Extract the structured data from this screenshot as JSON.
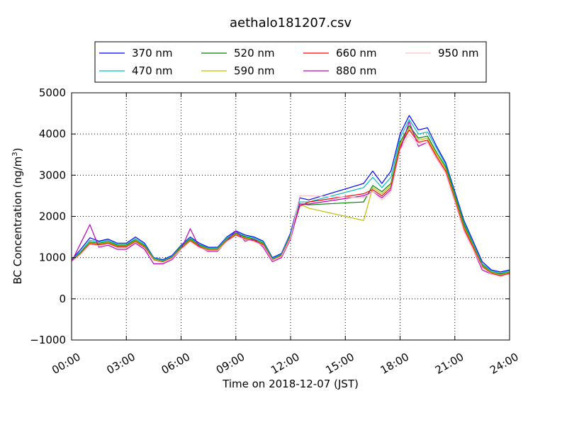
{
  "chart_data": {
    "type": "line",
    "title": "aethalo181207.csv",
    "xlabel": "Time on 2018-12-07 (JST)",
    "ylabel_main": "BC Concentration (ng/m",
    "ylabel_sup": "3",
    "ylabel_close": ")",
    "xlim": [
      0,
      24
    ],
    "ylim": [
      -1000,
      5000
    ],
    "x_ticks": [
      0,
      3,
      6,
      9,
      12,
      15,
      18,
      21,
      24
    ],
    "x_tick_labels": [
      "00:00",
      "03:00",
      "06:00",
      "09:00",
      "12:00",
      "15:00",
      "18:00",
      "21:00",
      "24:00"
    ],
    "y_ticks": [
      -1000,
      0,
      1000,
      2000,
      3000,
      4000,
      5000
    ],
    "y_tick_labels": [
      "−1000",
      "0",
      "1000",
      "2000",
      "3000",
      "4000",
      "5000"
    ],
    "grid": true,
    "legend_position": "top, above plot",
    "x_units": "hours",
    "x": [
      0,
      0.5,
      1,
      1.5,
      2,
      2.5,
      3,
      3.5,
      4,
      4.5,
      5,
      5.5,
      6,
      6.5,
      7,
      7.5,
      8,
      8.5,
      9,
      9.5,
      10,
      10.5,
      11,
      11.5,
      12,
      12.5,
      13,
      16,
      16.5,
      17,
      17.5,
      18,
      18.5,
      19,
      19.5,
      20,
      20.5,
      21,
      21.5,
      22,
      22.5,
      23,
      23.5,
      24
    ],
    "series": [
      {
        "name": "370 nm",
        "color": "#0000ff",
        "values": [
          950,
          1200,
          1480,
          1400,
          1450,
          1350,
          1350,
          1500,
          1350,
          1000,
          950,
          1050,
          1300,
          1500,
          1350,
          1250,
          1250,
          1500,
          1650,
          1550,
          1500,
          1400,
          1000,
          1100,
          1600,
          2450,
          2400,
          2800,
          3100,
          2800,
          3100,
          4000,
          4450,
          4100,
          4150,
          3700,
          3300,
          2600,
          1900,
          1400,
          900,
          700,
          650,
          700
        ]
      },
      {
        "name": "470 nm",
        "color": "#00bfbf",
        "values": [
          950,
          1150,
          1420,
          1380,
          1420,
          1320,
          1320,
          1460,
          1320,
          990,
          930,
          1030,
          1280,
          1480,
          1320,
          1230,
          1230,
          1480,
          1620,
          1520,
          1480,
          1380,
          980,
          1080,
          1570,
          2350,
          2350,
          2700,
          2950,
          2700,
          2950,
          3900,
          4350,
          4000,
          4050,
          3650,
          3250,
          2550,
          1850,
          1350,
          850,
          680,
          620,
          680
        ]
      },
      {
        "name": "520 nm",
        "color": "#008000",
        "values": [
          930,
          1120,
          1380,
          1350,
          1390,
          1300,
          1300,
          1430,
          1290,
          970,
          910,
          1010,
          1260,
          1450,
          1300,
          1210,
          1210,
          1450,
          1590,
          1500,
          1450,
          1350,
          960,
          1060,
          1540,
          2300,
          2280,
          2350,
          2750,
          2600,
          2800,
          3800,
          4200,
          3900,
          3950,
          3550,
          3200,
          2500,
          1800,
          1300,
          820,
          650,
          600,
          650
        ]
      },
      {
        "name": "590 nm",
        "color": "#bfbf00",
        "values": [
          920,
          1100,
          1360,
          1330,
          1370,
          1280,
          1280,
          1410,
          1270,
          960,
          900,
          1000,
          1240,
          1430,
          1280,
          1200,
          1200,
          1430,
          1570,
          1480,
          1430,
          1330,
          950,
          1050,
          1520,
          2300,
          2200,
          1900,
          2700,
          2550,
          2750,
          3750,
          4150,
          3850,
          3900,
          3500,
          3150,
          2450,
          1750,
          1280,
          800,
          640,
          580,
          640
        ]
      },
      {
        "name": "660 nm",
        "color": "#ff0000",
        "values": [
          910,
          1090,
          1340,
          1310,
          1350,
          1260,
          1260,
          1390,
          1250,
          940,
          890,
          990,
          1220,
          1410,
          1260,
          1180,
          1180,
          1410,
          1550,
          1460,
          1410,
          1310,
          940,
          1040,
          1500,
          2250,
          2350,
          2550,
          2650,
          2500,
          2700,
          3700,
          4100,
          3800,
          3850,
          3450,
          3100,
          2400,
          1700,
          1250,
          780,
          620,
          560,
          620
        ]
      },
      {
        "name": "880 nm",
        "color": "#bf00bf",
        "values": [
          900,
          1350,
          1800,
          1250,
          1300,
          1200,
          1200,
          1350,
          1200,
          850,
          850,
          950,
          1200,
          1700,
          1250,
          1150,
          1150,
          1400,
          1650,
          1400,
          1450,
          1250,
          900,
          1000,
          1450,
          2300,
          2300,
          2500,
          2600,
          2450,
          2650,
          3600,
          4300,
          3700,
          3800,
          3400,
          3050,
          2350,
          1650,
          1200,
          700,
          600,
          550,
          600
        ]
      },
      {
        "name": "950 nm",
        "color": "#ffc0cb",
        "values": [
          900,
          1080,
          1320,
          1290,
          1330,
          1240,
          1240,
          1370,
          1230,
          930,
          880,
          980,
          1200,
          1390,
          1240,
          1170,
          1170,
          1390,
          1530,
          1440,
          1390,
          1290,
          930,
          1030,
          1480,
          2500,
          2500,
          2450,
          2600,
          2400,
          2600,
          3600,
          4000,
          3750,
          3800,
          3400,
          3050,
          2350,
          1650,
          1200,
          760,
          600,
          540,
          600
        ]
      }
    ]
  }
}
